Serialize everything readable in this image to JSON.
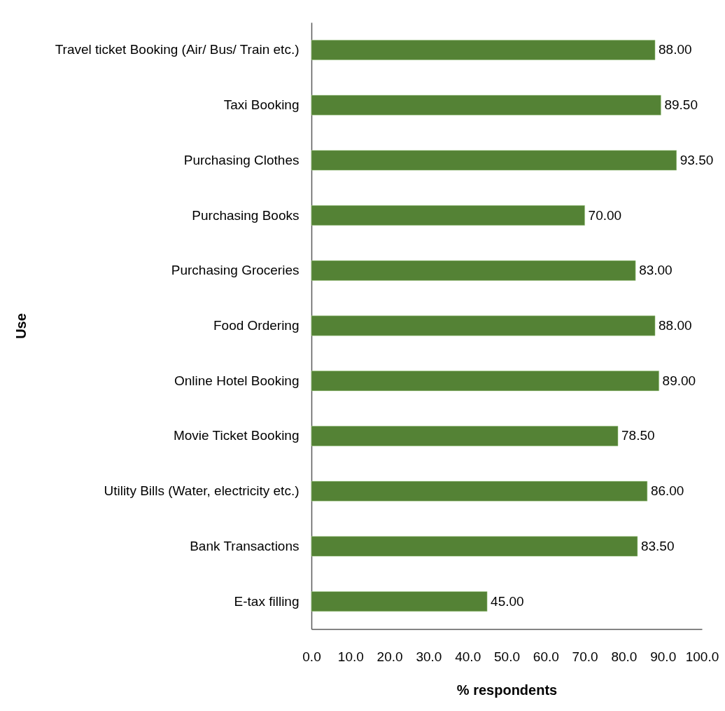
{
  "chart_data": {
    "type": "bar",
    "orientation": "horizontal",
    "xlabel": "% respondents",
    "ylabel": "Use",
    "categories": [
      "Travel ticket Booking (Air/ Bus/ Train etc.)",
      "Taxi Booking",
      "Purchasing Clothes",
      "Purchasing Books",
      "Purchasing Groceries",
      "Food Ordering",
      "Online Hotel Booking",
      "Movie Ticket Booking",
      "Utility Bills (Water, electricity etc.)",
      "Bank Transactions",
      "E-tax filling"
    ],
    "values": [
      88,
      89.5,
      93.5,
      70,
      83,
      88,
      89,
      78.5,
      86,
      83.5,
      45
    ],
    "color": "#548235",
    "value_labels": [
      "88.00",
      "89.50",
      "93.50",
      "70.00",
      "83.00",
      "88.00",
      "89.00",
      "78.50",
      "86.00",
      "83.50",
      "45.00"
    ],
    "xlim": [
      0,
      100
    ],
    "xticks": [
      {
        "value": 0,
        "label": "0.0"
      },
      {
        "value": 10,
        "label": "10.0"
      },
      {
        "value": 20,
        "label": "20.0"
      },
      {
        "value": 30,
        "label": "30.0"
      },
      {
        "value": 40,
        "label": "40.0"
      },
      {
        "value": 50,
        "label": "50.0"
      },
      {
        "value": 60,
        "label": "60.0"
      },
      {
        "value": 70,
        "label": "70.0"
      },
      {
        "value": 80,
        "label": "80.0"
      },
      {
        "value": 90,
        "label": "90.0"
      },
      {
        "value": 100,
        "label": "100.0"
      }
    ]
  }
}
